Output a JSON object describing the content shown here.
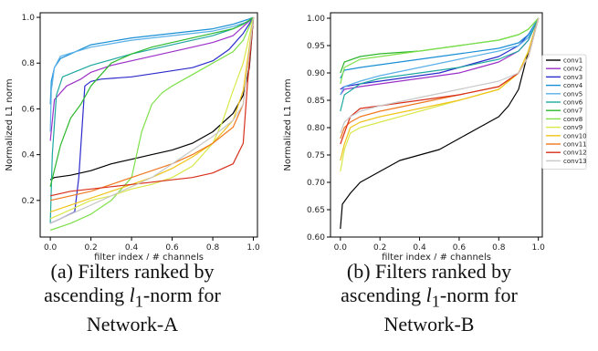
{
  "chart_data": [
    {
      "type": "line",
      "xlabel": "filter index / # channels",
      "ylabel": "Normalized L1 norm",
      "xlim": [
        -0.05,
        1.02
      ],
      "ylim": [
        0.04,
        1.02
      ],
      "xticks": [
        "0.0",
        "0.2",
        "0.4",
        "0.6",
        "0.8",
        "1.0"
      ],
      "xtick_values": [
        0,
        0.2,
        0.4,
        0.6,
        0.8,
        1.0
      ],
      "yticks": [
        "0.2",
        "0.4",
        "0.6",
        "0.8",
        "1.0"
      ],
      "ytick_values": [
        0.2,
        0.4,
        0.6,
        0.8,
        1.0
      ],
      "legend": "none",
      "grid": false,
      "series": [
        {
          "color": "#000000",
          "x": [
            0,
            0.02,
            0.1,
            0.2,
            0.3,
            0.4,
            0.5,
            0.6,
            0.7,
            0.8,
            0.9,
            0.95,
            0.98,
            1.0
          ],
          "y": [
            0.29,
            0.3,
            0.31,
            0.33,
            0.36,
            0.38,
            0.4,
            0.42,
            0.45,
            0.5,
            0.58,
            0.66,
            0.78,
            1.0
          ]
        },
        {
          "color": "#9b30c8",
          "x": [
            0,
            0.02,
            0.08,
            0.15,
            0.2,
            0.3,
            0.4,
            0.5,
            0.6,
            0.7,
            0.8,
            0.9,
            0.95,
            1.0
          ],
          "y": [
            0.46,
            0.64,
            0.7,
            0.73,
            0.76,
            0.79,
            0.81,
            0.83,
            0.85,
            0.87,
            0.89,
            0.92,
            0.96,
            1.0
          ]
        },
        {
          "color": "#2c2ccc",
          "x": [
            0,
            0.05,
            0.12,
            0.14,
            0.17,
            0.2,
            0.25,
            0.4,
            0.55,
            0.7,
            0.8,
            0.88,
            0.95,
            1.0
          ],
          "y": [
            0.1,
            0.12,
            0.15,
            0.3,
            0.7,
            0.72,
            0.73,
            0.74,
            0.76,
            0.78,
            0.81,
            0.86,
            0.93,
            1.0
          ]
        },
        {
          "color": "#1a8fd6",
          "x": [
            0,
            0.005,
            0.02,
            0.05,
            0.2,
            0.4,
            0.6,
            0.8,
            0.9,
            0.97,
            1.0
          ],
          "y": [
            0.62,
            0.72,
            0.78,
            0.82,
            0.88,
            0.91,
            0.93,
            0.95,
            0.97,
            0.99,
            1.0
          ]
        },
        {
          "color": "#5ab0e8",
          "x": [
            0,
            0.005,
            0.02,
            0.05,
            0.2,
            0.4,
            0.6,
            0.8,
            0.9,
            0.97,
            1.0
          ],
          "y": [
            0.5,
            0.68,
            0.78,
            0.83,
            0.87,
            0.9,
            0.92,
            0.94,
            0.96,
            0.98,
            1.0
          ]
        },
        {
          "color": "#1ea8a0",
          "x": [
            0,
            0.01,
            0.03,
            0.06,
            0.2,
            0.4,
            0.6,
            0.8,
            0.9,
            0.97,
            1.0
          ],
          "y": [
            0.1,
            0.4,
            0.66,
            0.74,
            0.79,
            0.84,
            0.88,
            0.92,
            0.95,
            0.98,
            1.0
          ]
        },
        {
          "color": "#2db82d",
          "x": [
            0,
            0.05,
            0.1,
            0.15,
            0.2,
            0.3,
            0.4,
            0.5,
            0.6,
            0.7,
            0.8,
            0.9,
            0.95,
            1.0
          ],
          "y": [
            0.26,
            0.44,
            0.56,
            0.62,
            0.7,
            0.8,
            0.84,
            0.87,
            0.89,
            0.91,
            0.93,
            0.95,
            0.97,
            1.0
          ]
        },
        {
          "color": "#7ee04a",
          "x": [
            0,
            0.1,
            0.2,
            0.3,
            0.4,
            0.45,
            0.5,
            0.55,
            0.6,
            0.7,
            0.8,
            0.9,
            0.95,
            1.0
          ],
          "y": [
            0.07,
            0.1,
            0.14,
            0.2,
            0.3,
            0.5,
            0.62,
            0.67,
            0.7,
            0.75,
            0.8,
            0.85,
            0.9,
            1.0
          ]
        },
        {
          "color": "#d9e84a",
          "x": [
            0,
            0.1,
            0.2,
            0.3,
            0.4,
            0.5,
            0.6,
            0.7,
            0.8,
            0.85,
            0.9,
            0.95,
            1.0
          ],
          "y": [
            0.12,
            0.16,
            0.2,
            0.22,
            0.25,
            0.27,
            0.3,
            0.35,
            0.45,
            0.55,
            0.68,
            0.8,
            1.0
          ]
        },
        {
          "color": "#f0c419",
          "x": [
            0,
            0.1,
            0.2,
            0.3,
            0.4,
            0.5,
            0.6,
            0.7,
            0.8,
            0.9,
            0.95,
            1.0
          ],
          "y": [
            0.15,
            0.18,
            0.21,
            0.24,
            0.27,
            0.3,
            0.34,
            0.39,
            0.45,
            0.55,
            0.68,
            1.0
          ]
        },
        {
          "color": "#f07820",
          "x": [
            0,
            0.1,
            0.2,
            0.3,
            0.4,
            0.5,
            0.6,
            0.7,
            0.8,
            0.9,
            0.95,
            1.0
          ],
          "y": [
            0.2,
            0.22,
            0.24,
            0.27,
            0.3,
            0.33,
            0.36,
            0.4,
            0.45,
            0.52,
            0.62,
            1.0
          ]
        },
        {
          "color": "#d8301c",
          "x": [
            0,
            0.1,
            0.2,
            0.3,
            0.4,
            0.5,
            0.6,
            0.7,
            0.8,
            0.9,
            0.95,
            0.97,
            1.0
          ],
          "y": [
            0.22,
            0.24,
            0.25,
            0.26,
            0.27,
            0.28,
            0.29,
            0.3,
            0.32,
            0.36,
            0.45,
            0.7,
            1.0
          ]
        },
        {
          "color": "#c8c8c8",
          "x": [
            0,
            0.1,
            0.2,
            0.3,
            0.4,
            0.5,
            0.6,
            0.7,
            0.8,
            0.9,
            0.95,
            1.0
          ],
          "y": [
            0.1,
            0.14,
            0.18,
            0.22,
            0.26,
            0.3,
            0.36,
            0.42,
            0.48,
            0.55,
            0.62,
            1.0
          ]
        }
      ]
    },
    {
      "type": "line",
      "xlabel": "filter index / # channels",
      "ylabel": "Normalized L1 norm",
      "xlim": [
        -0.05,
        1.02
      ],
      "ylim": [
        0.6,
        1.01
      ],
      "xticks": [
        "0.0",
        "0.2",
        "0.4",
        "0.6",
        "0.8",
        "1.0"
      ],
      "xtick_values": [
        0,
        0.2,
        0.4,
        0.6,
        0.8,
        1.0
      ],
      "yticks": [
        "0.60",
        "0.65",
        "0.70",
        "0.75",
        "0.80",
        "0.85",
        "0.90",
        "0.95",
        "1.00"
      ],
      "ytick_values": [
        0.6,
        0.65,
        0.7,
        0.75,
        0.8,
        0.85,
        0.9,
        0.95,
        1.0
      ],
      "legend": "right",
      "grid": false,
      "series": [
        {
          "name": "conv1",
          "color": "#000000",
          "x": [
            0,
            0.01,
            0.05,
            0.1,
            0.2,
            0.3,
            0.4,
            0.5,
            0.6,
            0.7,
            0.8,
            0.85,
            0.9,
            0.95,
            1.0
          ],
          "y": [
            0.615,
            0.66,
            0.68,
            0.7,
            0.72,
            0.74,
            0.75,
            0.76,
            0.78,
            0.8,
            0.82,
            0.84,
            0.87,
            0.94,
            1.0
          ]
        },
        {
          "name": "conv2",
          "color": "#9b30c8",
          "x": [
            0,
            0.02,
            0.1,
            0.2,
            0.3,
            0.4,
            0.5,
            0.6,
            0.7,
            0.8,
            0.9,
            0.95,
            1.0
          ],
          "y": [
            0.86,
            0.87,
            0.875,
            0.88,
            0.885,
            0.89,
            0.895,
            0.9,
            0.91,
            0.92,
            0.94,
            0.96,
            1.0
          ]
        },
        {
          "name": "conv3",
          "color": "#2c2ccc",
          "x": [
            0,
            0.02,
            0.1,
            0.2,
            0.3,
            0.4,
            0.5,
            0.6,
            0.7,
            0.8,
            0.9,
            0.95,
            1.0
          ],
          "y": [
            0.87,
            0.875,
            0.88,
            0.885,
            0.89,
            0.895,
            0.9,
            0.91,
            0.92,
            0.93,
            0.95,
            0.97,
            1.0
          ]
        },
        {
          "name": "conv4",
          "color": "#1a8fd6",
          "x": [
            0,
            0.02,
            0.1,
            0.2,
            0.4,
            0.6,
            0.8,
            0.9,
            0.95,
            1.0
          ],
          "y": [
            0.89,
            0.905,
            0.91,
            0.915,
            0.925,
            0.935,
            0.945,
            0.955,
            0.97,
            1.0
          ]
        },
        {
          "name": "conv5",
          "color": "#5ab0e8",
          "x": [
            0,
            0.02,
            0.1,
            0.2,
            0.4,
            0.6,
            0.8,
            0.9,
            0.95,
            1.0
          ],
          "y": [
            0.86,
            0.875,
            0.885,
            0.895,
            0.91,
            0.925,
            0.94,
            0.95,
            0.965,
            1.0
          ]
        },
        {
          "name": "conv6",
          "color": "#1ea8a0",
          "x": [
            0,
            0.02,
            0.1,
            0.2,
            0.4,
            0.6,
            0.8,
            0.9,
            0.95,
            1.0
          ],
          "y": [
            0.83,
            0.86,
            0.88,
            0.89,
            0.9,
            0.91,
            0.925,
            0.94,
            0.96,
            1.0
          ]
        },
        {
          "name": "conv7",
          "color": "#2db82d",
          "x": [
            0,
            0.02,
            0.1,
            0.2,
            0.4,
            0.6,
            0.8,
            0.9,
            0.95,
            1.0
          ],
          "y": [
            0.9,
            0.92,
            0.93,
            0.935,
            0.94,
            0.95,
            0.96,
            0.97,
            0.98,
            1.0
          ]
        },
        {
          "name": "conv8",
          "color": "#7ee04a",
          "x": [
            0,
            0.02,
            0.1,
            0.2,
            0.4,
            0.6,
            0.8,
            0.9,
            0.95,
            1.0
          ],
          "y": [
            0.88,
            0.91,
            0.925,
            0.93,
            0.94,
            0.95,
            0.96,
            0.97,
            0.98,
            1.0
          ]
        },
        {
          "name": "conv9",
          "color": "#d9e84a",
          "x": [
            0,
            0.02,
            0.05,
            0.1,
            0.2,
            0.4,
            0.6,
            0.8,
            0.9,
            0.95,
            1.0
          ],
          "y": [
            0.72,
            0.76,
            0.79,
            0.8,
            0.81,
            0.83,
            0.85,
            0.87,
            0.9,
            0.94,
            1.0
          ]
        },
        {
          "name": "conv10",
          "color": "#f0c419",
          "x": [
            0,
            0.02,
            0.05,
            0.1,
            0.2,
            0.4,
            0.6,
            0.8,
            0.9,
            0.95,
            1.0
          ],
          "y": [
            0.74,
            0.77,
            0.8,
            0.81,
            0.82,
            0.835,
            0.85,
            0.87,
            0.9,
            0.94,
            1.0
          ]
        },
        {
          "name": "conv11",
          "color": "#f07820",
          "x": [
            0,
            0.02,
            0.05,
            0.1,
            0.2,
            0.4,
            0.6,
            0.8,
            0.9,
            0.95,
            1.0
          ],
          "y": [
            0.78,
            0.8,
            0.81,
            0.82,
            0.83,
            0.845,
            0.86,
            0.875,
            0.9,
            0.93,
            1.0
          ]
        },
        {
          "name": "conv12",
          "color": "#d8301c",
          "x": [
            0,
            0.01,
            0.03,
            0.05,
            0.1,
            0.2,
            0.4,
            0.6,
            0.8,
            0.9,
            0.95,
            1.0
          ],
          "y": [
            0.77,
            0.78,
            0.8,
            0.82,
            0.835,
            0.84,
            0.85,
            0.86,
            0.875,
            0.9,
            0.93,
            1.0
          ]
        },
        {
          "name": "conv13",
          "color": "#c8c8c8",
          "x": [
            0,
            0.02,
            0.05,
            0.1,
            0.2,
            0.4,
            0.6,
            0.8,
            0.9,
            0.95,
            1.0
          ],
          "y": [
            0.79,
            0.81,
            0.82,
            0.83,
            0.84,
            0.855,
            0.87,
            0.885,
            0.9,
            0.93,
            1.0
          ]
        }
      ]
    }
  ],
  "captions": [
    {
      "line1": "(a) Filters ranked by",
      "line2_pre": "ascending ",
      "line2_math": "l",
      "line2_sub": "1",
      "line2_post": "-norm for",
      "line3": "Network-A"
    },
    {
      "line1": "(b) Filters ranked by",
      "line2_pre": "ascending ",
      "line2_math": "l",
      "line2_sub": "1",
      "line2_post": "-norm for",
      "line3": "Network-B"
    }
  ]
}
